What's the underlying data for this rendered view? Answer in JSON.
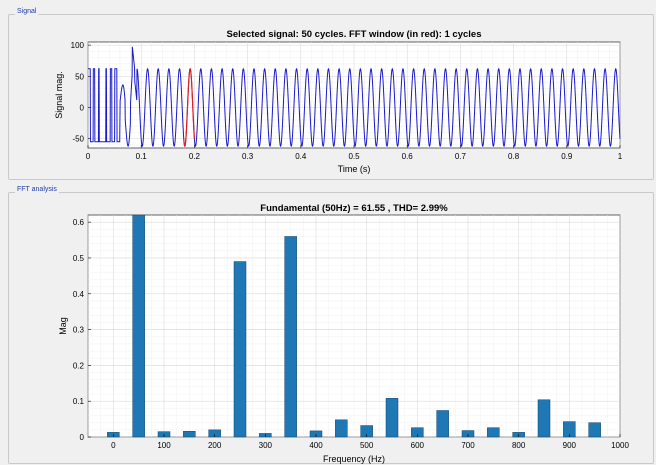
{
  "signal_panel": {
    "title": "Signal"
  },
  "fft_panel": {
    "title": "FFT analysis"
  },
  "chart_data": [
    {
      "type": "line",
      "title": "Selected signal: 50 cycles. FFT window (in red): 1 cycles",
      "xlabel": "Time (s)",
      "ylabel": "Signal mag.",
      "xlim": [
        0,
        1
      ],
      "ylim": [
        -65,
        105
      ],
      "xticks": [
        0,
        0.1,
        0.2,
        0.3,
        0.4,
        0.5,
        0.6,
        0.7,
        0.8,
        0.9,
        1
      ],
      "xtick_labels": [
        "0",
        "0.1",
        "0.2",
        "0.3",
        "0.4",
        "0.5",
        "0.6",
        "0.7",
        "0.8",
        "0.9",
        "1"
      ],
      "yticks": [
        -50,
        0,
        50,
        100
      ],
      "ytick_labels": [
        "-50",
        "0",
        "50",
        "100"
      ],
      "grid": true,
      "cycles": 50,
      "fundamental_hz": 50,
      "steady_amplitude": 62,
      "transient_peak": 100,
      "transient_low": -55,
      "fft_window": [
        0.18,
        0.2
      ],
      "colors": {
        "signal": "#1a1acc",
        "window": "#e02020"
      }
    },
    {
      "type": "bar",
      "title": "Fundamental (50Hz) = 61.55 , THD= 2.99%",
      "xlabel": "Frequency (Hz)",
      "ylabel": "Mag",
      "xlim": [
        -50,
        1000
      ],
      "ylim": [
        0,
        0.62
      ],
      "xticks": [
        0,
        100,
        200,
        300,
        400,
        500,
        600,
        700,
        800,
        900,
        1000
      ],
      "xtick_labels": [
        "0",
        "100",
        "200",
        "300",
        "400",
        "500",
        "600",
        "700",
        "800",
        "900",
        "1000"
      ],
      "yticks": [
        0,
        0.1,
        0.2,
        0.3,
        0.4,
        0.5,
        0.6
      ],
      "ytick_labels": [
        "0",
        "0.1",
        "0.2",
        "0.3",
        "0.4",
        "0.5",
        "0.6"
      ],
      "grid": true,
      "x": [
        0,
        50,
        100,
        150,
        200,
        250,
        300,
        350,
        400,
        450,
        500,
        550,
        600,
        650,
        700,
        750,
        800,
        850,
        900,
        950
      ],
      "values": [
        0.013,
        0.62,
        0.015,
        0.016,
        0.02,
        0.49,
        0.01,
        0.56,
        0.017,
        0.048,
        0.032,
        0.108,
        0.026,
        0.074,
        0.018,
        0.026,
        0.013,
        0.104,
        0.043,
        0.04
      ],
      "colors": {
        "bar": "#1f77b4",
        "bar_edge": "#17476c"
      }
    }
  ]
}
